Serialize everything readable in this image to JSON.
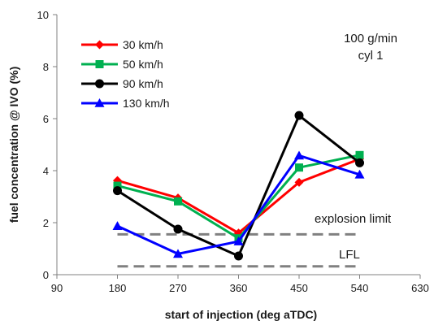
{
  "chart_data": {
    "type": "line",
    "title": "",
    "xlabel": "start of injection (deg aTDC)",
    "ylabel": "fuel concentration @ IVO (%)",
    "xlim": [
      90,
      630
    ],
    "ylim": [
      0,
      10
    ],
    "xticks": [
      90,
      180,
      270,
      360,
      450,
      540,
      630
    ],
    "yticks": [
      0,
      2,
      4,
      6,
      8,
      10
    ],
    "grid": false,
    "legend": "top-left",
    "x": [
      180,
      270,
      360,
      450,
      540
    ],
    "series": [
      {
        "name": "30 km/h",
        "color": "#ff0000",
        "marker": "diamond",
        "values": [
          3.62,
          2.95,
          1.6,
          3.55,
          4.45
        ]
      },
      {
        "name": "50 km/h",
        "color": "#00b050",
        "marker": "square",
        "values": [
          3.42,
          2.82,
          1.4,
          4.12,
          4.6
        ]
      },
      {
        "name": "90 km/h",
        "color": "#000000",
        "marker": "circle",
        "values": [
          3.23,
          1.75,
          0.72,
          6.12,
          4.3
        ]
      },
      {
        "name": "130 km/h",
        "color": "#0000ff",
        "marker": "triangle",
        "values": [
          1.87,
          0.8,
          1.28,
          4.58,
          3.85
        ]
      }
    ],
    "reference_lines": [
      {
        "label": "explosion limit",
        "y": 1.55,
        "x_range": [
          180,
          540
        ],
        "color": "#808080",
        "style": "dashed"
      },
      {
        "label": "LFL",
        "y": 0.32,
        "x_range": [
          180,
          540
        ],
        "color": "#808080",
        "style": "dashed"
      }
    ],
    "annotations": [
      "100 g/min",
      "cyl 1"
    ]
  }
}
